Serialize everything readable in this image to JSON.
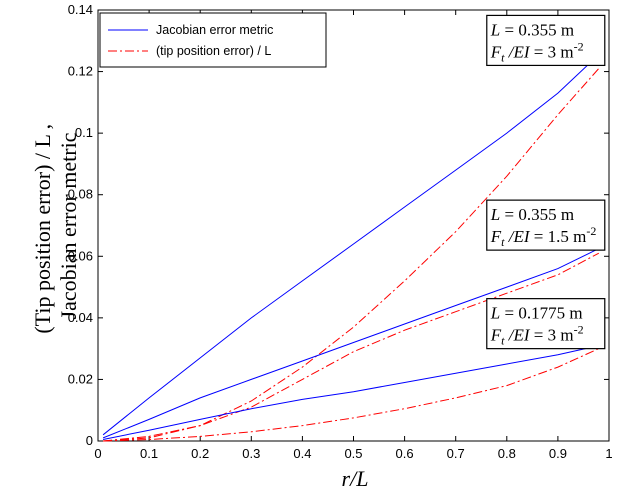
{
  "chart_data": {
    "type": "line",
    "xlabel": "r/L",
    "ylabel": "(Tip position error) / L ,\nJacobian error metric",
    "xlim": [
      0,
      1
    ],
    "ylim": [
      0,
      0.14
    ],
    "xticks": [
      "0",
      "0.1",
      "0.2",
      "0.3",
      "0.4",
      "0.5",
      "0.6",
      "0.7",
      "0.8",
      "0.9",
      "1"
    ],
    "yticks": [
      "0",
      "0.02",
      "0.04",
      "0.06",
      "0.08",
      "0.1",
      "0.12",
      "0.14"
    ],
    "grid": false,
    "legend_position": "top-left",
    "legend": [
      {
        "label": "Jacobian error metric",
        "color": "#0000ff",
        "style": "solid"
      },
      {
        "label": "(tip position error) / L",
        "color": "#ff0000",
        "style": "dashdot"
      }
    ],
    "series": [
      {
        "legend_ref": 0,
        "color": "#0000ff",
        "style": "solid",
        "x": [
          0.01,
          0.1,
          0.2,
          0.3,
          0.4,
          0.5,
          0.6,
          0.7,
          0.8,
          0.9,
          0.98
        ],
        "y": [
          0.002,
          0.014,
          0.027,
          0.04,
          0.052,
          0.064,
          0.076,
          0.088,
          0.1,
          0.113,
          0.1255
        ]
      },
      {
        "legend_ref": 1,
        "color": "#ff0000",
        "style": "dashdot",
        "x": [
          0.01,
          0.1,
          0.2,
          0.3,
          0.4,
          0.5,
          0.6,
          0.7,
          0.8,
          0.9,
          0.98
        ],
        "y": [
          0.0,
          0.001,
          0.005,
          0.013,
          0.024,
          0.037,
          0.052,
          0.068,
          0.086,
          0.106,
          0.121
        ]
      },
      {
        "legend_ref": 0,
        "color": "#0000ff",
        "style": "solid",
        "x": [
          0.01,
          0.1,
          0.2,
          0.3,
          0.4,
          0.5,
          0.6,
          0.7,
          0.8,
          0.9,
          0.98
        ],
        "y": [
          0.001,
          0.007,
          0.014,
          0.02,
          0.026,
          0.032,
          0.038,
          0.044,
          0.05,
          0.056,
          0.0625
        ]
      },
      {
        "legend_ref": 1,
        "color": "#ff0000",
        "style": "dashdot",
        "x": [
          0.01,
          0.1,
          0.2,
          0.3,
          0.4,
          0.5,
          0.6,
          0.7,
          0.8,
          0.9,
          0.98
        ],
        "y": [
          0.0,
          0.0015,
          0.005,
          0.011,
          0.02,
          0.029,
          0.036,
          0.042,
          0.048,
          0.054,
          0.061
        ]
      },
      {
        "legend_ref": 0,
        "color": "#0000ff",
        "style": "solid",
        "x": [
          0.01,
          0.1,
          0.2,
          0.3,
          0.4,
          0.5,
          0.6,
          0.7,
          0.8,
          0.9,
          0.98
        ],
        "y": [
          0.0005,
          0.0035,
          0.007,
          0.0105,
          0.0135,
          0.016,
          0.019,
          0.022,
          0.025,
          0.028,
          0.031
        ]
      },
      {
        "legend_ref": 1,
        "color": "#ff0000",
        "style": "dashdot",
        "x": [
          0.01,
          0.1,
          0.2,
          0.3,
          0.4,
          0.5,
          0.6,
          0.7,
          0.8,
          0.9,
          0.98
        ],
        "y": [
          0.0,
          0.0005,
          0.0015,
          0.003,
          0.005,
          0.0075,
          0.0105,
          0.014,
          0.018,
          0.024,
          0.03
        ]
      }
    ],
    "annotations": [
      {
        "name": "annotation-case-a",
        "anchor_x": 0.98,
        "anchor_y": 0.122,
        "line1": {
          "sym": "L",
          "rest": " = 0.355 m"
        },
        "line2": {
          "sym": "F",
          "sub": "t",
          "sym2": " /EI",
          "rest": " = 3 m",
          "sup": "-2"
        }
      },
      {
        "name": "annotation-case-b",
        "anchor_x": 0.98,
        "anchor_y": 0.062,
        "line1": {
          "sym": "L",
          "rest": " = 0.355 m"
        },
        "line2": {
          "sym": "F",
          "sub": "t",
          "sym2": " /EI",
          "rest": " = 1.5 m",
          "sup": "-2"
        }
      },
      {
        "name": "annotation-case-c",
        "anchor_x": 0.98,
        "anchor_y": 0.03,
        "line1": {
          "sym": "L",
          "rest": " = 0.1775 m"
        },
        "line2": {
          "sym": "F",
          "sub": "t",
          "sym2": " /EI",
          "rest": " = 3 m",
          "sup": "-2"
        }
      }
    ]
  }
}
